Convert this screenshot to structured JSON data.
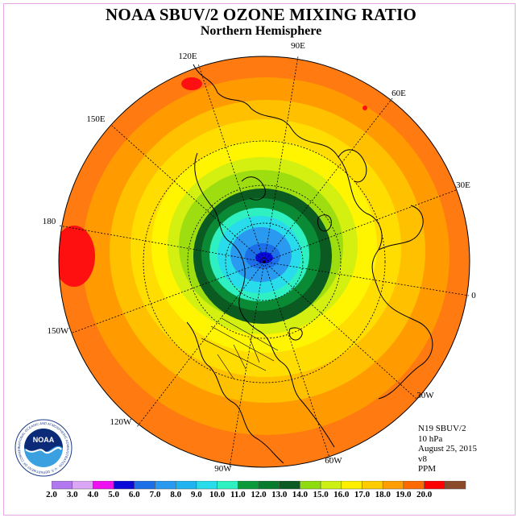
{
  "header": {
    "title": "NOAA SBUV/2 OZONE MIXING RATIO",
    "subtitle": "Northern Hemisphere"
  },
  "longitude_labels": [
    "90E",
    "120E",
    "60E",
    "150E",
    "30E",
    "180",
    "0",
    "150W",
    "30W",
    "120W",
    "60W",
    "90W"
  ],
  "info": {
    "instrument": "N19 SBUV/2",
    "pressure": "10 hPa",
    "date": "August 25, 2015",
    "version": "v8",
    "units": "PPM"
  },
  "logo": {
    "text": "NOAA",
    "ring_text": "NATIONAL OCEANIC AND ATMOSPHERIC ADMINISTRATION · U.S. DEPARTMENT OF COMMERCE"
  },
  "colorbar": {
    "labels": [
      "2.0",
      "3.0",
      "4.0",
      "5.0",
      "6.0",
      "7.0",
      "8.0",
      "9.0",
      "10.0",
      "11.0",
      "12.0",
      "13.0",
      "14.0",
      "15.0",
      "16.0",
      "17.0",
      "18.0",
      "19.0",
      "20.0"
    ],
    "colors": [
      "#b077ee",
      "#dba6f5",
      "#ee10ee",
      "#0a0ad8",
      "#1c6fe6",
      "#2a99f0",
      "#1fb4f0",
      "#28dcec",
      "#2ef0c0",
      "#0a9a3a",
      "#087a2e",
      "#0a5a22",
      "#8edc10",
      "#ccf012",
      "#fff000",
      "#ffcc00",
      "#ff9e00",
      "#ff6a00",
      "#ff0000",
      "#8a4a2a"
    ]
  }
}
